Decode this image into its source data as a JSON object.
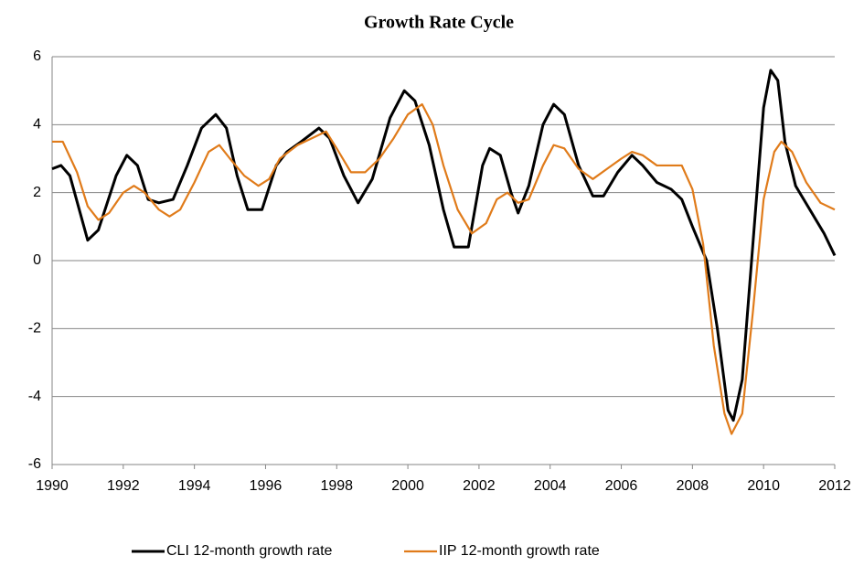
{
  "chart_data": {
    "type": "line",
    "title": "Growth Rate Cycle",
    "xlim": [
      1990,
      2012
    ],
    "xticks": [
      1990,
      1992,
      1994,
      1996,
      1998,
      2000,
      2002,
      2004,
      2006,
      2008,
      2010,
      2012
    ],
    "ylim": [
      -6,
      6
    ],
    "yticks": [
      -6,
      -4,
      -2,
      0,
      2,
      4,
      6
    ],
    "grid": true,
    "legend": "bottom",
    "series": [
      {
        "name": "CLI 12-month growth rate",
        "color": "#000000",
        "x": [
          1990,
          1990.25,
          1990.5,
          1991.0,
          1991.3,
          1991.8,
          1992.1,
          1992.4,
          1992.7,
          1993.0,
          1993.4,
          1993.8,
          1994.2,
          1994.6,
          1994.9,
          1995.2,
          1995.5,
          1995.9,
          1996.3,
          1996.6,
          1997.0,
          1997.5,
          1997.8,
          1998.2,
          1998.6,
          1999.0,
          1999.5,
          1999.9,
          2000.2,
          2000.6,
          2001.0,
          2001.3,
          2001.7,
          2002.1,
          2002.3,
          2002.6,
          2002.9,
          2003.1,
          2003.4,
          2003.8,
          2004.1,
          2004.4,
          2004.8,
          2005.2,
          2005.5,
          2005.9,
          2006.3,
          2006.6,
          2007.0,
          2007.4,
          2007.7,
          2008.0,
          2008.4,
          2008.7,
          2009.0,
          2009.15,
          2009.4,
          2009.7,
          2010.0,
          2010.2,
          2010.4,
          2010.6,
          2010.9,
          2011.3,
          2011.7,
          2012.0
        ],
        "values": [
          2.7,
          2.8,
          2.5,
          0.6,
          0.9,
          2.5,
          3.1,
          2.8,
          1.8,
          1.7,
          1.8,
          2.8,
          3.9,
          4.3,
          3.9,
          2.5,
          1.5,
          1.5,
          2.8,
          3.2,
          3.5,
          3.9,
          3.6,
          2.5,
          1.7,
          2.4,
          4.2,
          5.0,
          4.7,
          3.4,
          1.5,
          0.4,
          0.4,
          2.8,
          3.3,
          3.1,
          2.0,
          1.4,
          2.2,
          4.0,
          4.6,
          4.3,
          2.8,
          1.9,
          1.9,
          2.6,
          3.1,
          2.8,
          2.3,
          2.1,
          1.8,
          1.0,
          0.0,
          -2.0,
          -4.4,
          -4.7,
          -3.5,
          0.5,
          4.5,
          5.6,
          5.3,
          3.5,
          2.2,
          1.5,
          0.8,
          0.15
        ]
      },
      {
        "name": "IIP 12-month growth rate",
        "color": "#e07b1a",
        "x": [
          1990,
          1990.3,
          1990.7,
          1991.0,
          1991.3,
          1991.6,
          1992.0,
          1992.3,
          1992.6,
          1993.0,
          1993.3,
          1993.6,
          1994.0,
          1994.4,
          1994.7,
          1995.0,
          1995.4,
          1995.8,
          1996.1,
          1996.4,
          1996.9,
          1997.3,
          1997.7,
          1998.0,
          1998.4,
          1998.8,
          1999.2,
          1999.6,
          2000.0,
          2000.4,
          2000.7,
          2001.0,
          2001.4,
          2001.8,
          2002.2,
          2002.5,
          2002.8,
          2003.1,
          2003.4,
          2003.8,
          2004.1,
          2004.4,
          2004.8,
          2005.2,
          2005.6,
          2006.0,
          2006.3,
          2006.6,
          2007.0,
          2007.4,
          2007.7,
          2008.0,
          2008.3,
          2008.6,
          2008.9,
          2009.1,
          2009.4,
          2009.7,
          2010.0,
          2010.3,
          2010.5,
          2010.8,
          2011.2,
          2011.6,
          2012.0
        ],
        "values": [
          3.5,
          3.5,
          2.6,
          1.6,
          1.2,
          1.4,
          2.0,
          2.2,
          2.0,
          1.5,
          1.3,
          1.5,
          2.3,
          3.2,
          3.4,
          3.0,
          2.5,
          2.2,
          2.4,
          3.0,
          3.4,
          3.6,
          3.8,
          3.3,
          2.6,
          2.6,
          3.0,
          3.6,
          4.3,
          4.6,
          4.0,
          2.8,
          1.5,
          0.8,
          1.1,
          1.8,
          2.0,
          1.7,
          1.8,
          2.8,
          3.4,
          3.3,
          2.7,
          2.4,
          2.7,
          3.0,
          3.2,
          3.1,
          2.8,
          2.8,
          2.8,
          2.1,
          0.5,
          -2.5,
          -4.5,
          -5.1,
          -4.5,
          -1.5,
          1.8,
          3.2,
          3.5,
          3.2,
          2.3,
          1.7,
          1.5
        ]
      }
    ]
  }
}
